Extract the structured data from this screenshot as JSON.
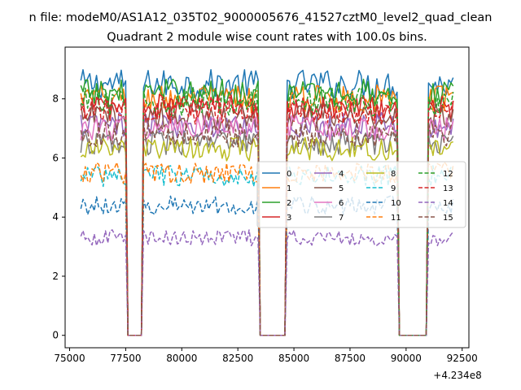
{
  "chart_data": {
    "type": "line",
    "suptitle": "n file: modeM0/AS1A12_035T02_9000005676_41527cztM0_level2_quad_clean",
    "title": "Quadrant 2 module wise count rates with 100.0s bins.",
    "xlabel": "",
    "ylabel": "",
    "x_offset_label": "+4.234e8",
    "xlim": [
      74800,
      92800
    ],
    "ylim": [
      -0.42,
      9.75
    ],
    "xticks": [
      75000,
      77500,
      80000,
      82500,
      85000,
      87500,
      90000,
      92500
    ],
    "xtick_labels": [
      "75000",
      "77500",
      "80000",
      "82500",
      "85000",
      "87500",
      "90000",
      "92500"
    ],
    "yticks": [
      0,
      2,
      4,
      6,
      8
    ],
    "ytick_labels": [
      "0",
      "2",
      "4",
      "6",
      "8"
    ],
    "x_start": 75500,
    "bin": 100,
    "gaps": [
      [
        77500,
        78300
      ],
      [
        83400,
        84700
      ],
      [
        89600,
        91000
      ]
    ],
    "end": 92100,
    "legend_location": "center-right",
    "series": [
      {
        "name": "0",
        "level": 8.5,
        "color": "#1f77b4",
        "style": "solid"
      },
      {
        "name": "1",
        "level": 8.0,
        "color": "#ff7f0e",
        "style": "solid"
      },
      {
        "name": "2",
        "level": 8.2,
        "color": "#2ca02c",
        "style": "solid"
      },
      {
        "name": "3",
        "level": 7.7,
        "color": "#d62728",
        "style": "solid"
      },
      {
        "name": "4",
        "level": 7.1,
        "color": "#9467bd",
        "style": "solid"
      },
      {
        "name": "5",
        "level": 7.4,
        "color": "#8c564b",
        "style": "solid"
      },
      {
        "name": "6",
        "level": 7.0,
        "color": "#e377c2",
        "style": "solid"
      },
      {
        "name": "7",
        "level": 6.5,
        "color": "#7f7f7f",
        "style": "solid"
      },
      {
        "name": "8",
        "level": 6.3,
        "color": "#bcbd22",
        "style": "solid"
      },
      {
        "name": "9",
        "level": 5.4,
        "color": "#17becf",
        "style": "dashed"
      },
      {
        "name": "10",
        "level": 4.4,
        "color": "#1f77b4",
        "style": "dashed"
      },
      {
        "name": "11",
        "level": 5.5,
        "color": "#ff7f0e",
        "style": "dashed"
      },
      {
        "name": "12",
        "level": 7.9,
        "color": "#2ca02c",
        "style": "dashed"
      },
      {
        "name": "13",
        "level": 7.6,
        "color": "#d62728",
        "style": "dashed"
      },
      {
        "name": "14",
        "level": 3.3,
        "color": "#9467bd",
        "style": "dashed"
      },
      {
        "name": "15",
        "level": 6.8,
        "color": "#8c564b",
        "style": "dashed"
      }
    ]
  }
}
